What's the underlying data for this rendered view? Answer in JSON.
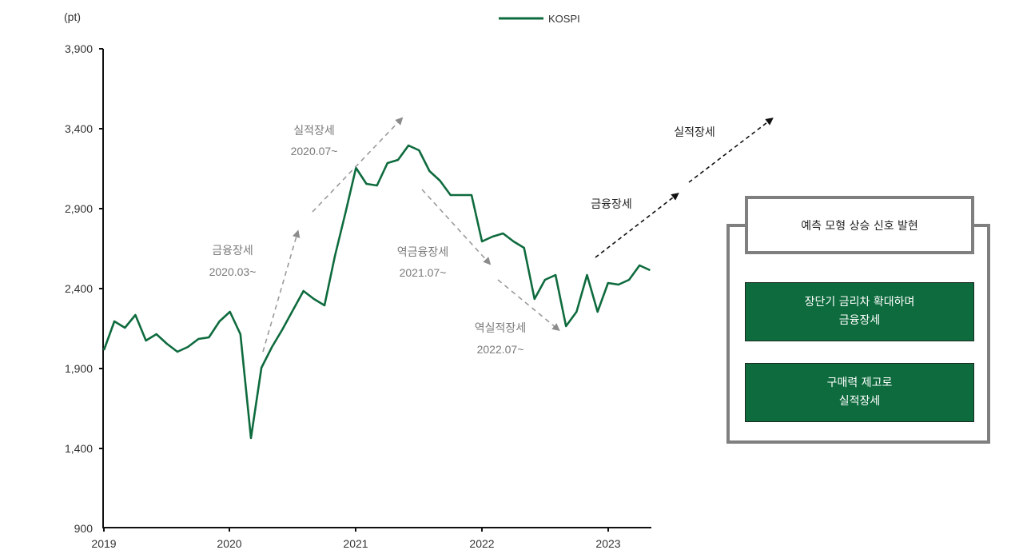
{
  "chart_data": {
    "type": "line",
    "title": "",
    "ylabel": "(pt)",
    "xlabel": "",
    "ylim": [
      900,
      3900
    ],
    "yticks": [
      900,
      1400,
      1900,
      2400,
      2900,
      3400,
      3900
    ],
    "ytick_labels": [
      "900",
      "1,400",
      "1,900",
      "2,400",
      "2,900",
      "3,400",
      "3,900"
    ],
    "xticks": [
      "2019",
      "2020",
      "2021",
      "2022",
      "2023"
    ],
    "grid": false,
    "legend": {
      "position": "top-center",
      "entries": [
        "KOSPI"
      ]
    },
    "series": [
      {
        "name": "KOSPI",
        "color": "#0e6b3e",
        "x": [
          "2019-01",
          "2019-02",
          "2019-03",
          "2019-04",
          "2019-05",
          "2019-06",
          "2019-07",
          "2019-08",
          "2019-09",
          "2019-10",
          "2019-11",
          "2019-12",
          "2020-01",
          "2020-02",
          "2020-03",
          "2020-04",
          "2020-05",
          "2020-06",
          "2020-07",
          "2020-08",
          "2020-09",
          "2020-10",
          "2020-11",
          "2020-12",
          "2021-01",
          "2021-02",
          "2021-03",
          "2021-04",
          "2021-05",
          "2021-06",
          "2021-07",
          "2021-08",
          "2021-09",
          "2021-10",
          "2021-11",
          "2021-12",
          "2022-01",
          "2022-02",
          "2022-03",
          "2022-04",
          "2022-05",
          "2022-06",
          "2022-07",
          "2022-08",
          "2022-09",
          "2022-10",
          "2022-11",
          "2022-12",
          "2023-01",
          "2023-02",
          "2023-03",
          "2023-04",
          "2023-05"
        ],
        "values": [
          2010,
          2190,
          2150,
          2230,
          2070,
          2110,
          2050,
          2000,
          2030,
          2080,
          2090,
          2190,
          2250,
          2110,
          1460,
          1900,
          2030,
          2140,
          2260,
          2380,
          2330,
          2290,
          2600,
          2870,
          3150,
          3050,
          3040,
          3180,
          3200,
          3290,
          3260,
          3130,
          3070,
          2980,
          2980,
          2980,
          2690,
          2720,
          2740,
          2690,
          2650,
          2330,
          2450,
          2480,
          2160,
          2250,
          2480,
          2250,
          2430,
          2420,
          2450,
          2540,
          2510
        ]
      }
    ],
    "annotations": [
      {
        "text": "금융장세\n2020.03~",
        "style": "gray-dashed-arrow",
        "direction": "up"
      },
      {
        "text": "실적장세\n2020.07~",
        "style": "gray-dashed-arrow",
        "direction": "up"
      },
      {
        "text": "역금융장세\n2021.07~",
        "style": "gray-dashed-arrow",
        "direction": "down"
      },
      {
        "text": "역실적장세\n2022.07~",
        "style": "gray-dashed-arrow",
        "direction": "down"
      },
      {
        "text": "금융장세",
        "style": "black-dashed-arrow",
        "direction": "up"
      },
      {
        "text": "실적장세",
        "style": "black-dashed-arrow",
        "direction": "up"
      }
    ]
  },
  "axis": {
    "unit": "(pt)",
    "y": [
      "3,900",
      "3,400",
      "2,900",
      "2,400",
      "1,900",
      "1,400",
      "900"
    ],
    "x": [
      "2019",
      "2020",
      "2021",
      "2022",
      "2023"
    ]
  },
  "legend": {
    "label": "KOSPI",
    "color": "#0e6b3e"
  },
  "annotations": {
    "fin_2020_title": "금융장세",
    "fin_2020_date": "2020.03~",
    "earn_2020_title": "실적장세",
    "earn_2020_date": "2020.07~",
    "revfin_2021_title": "역금융장세",
    "revfin_2021_date": "2021.07~",
    "reveearn_2022_title": "역실적장세",
    "reveearn_2022_date": "2022.07~",
    "future_fin": "금융장세",
    "future_earn": "실적장세"
  },
  "side_panel": {
    "title": "예측 모형 상승 신호 발현",
    "box1_line1": "장단기 금리차 확대하며",
    "box1_line2": "금융장세",
    "box2_line1": "구매력 제고로",
    "box2_line2": "실적장세",
    "accent": "#0e6b3e",
    "frame_color": "#7f7f7f"
  }
}
